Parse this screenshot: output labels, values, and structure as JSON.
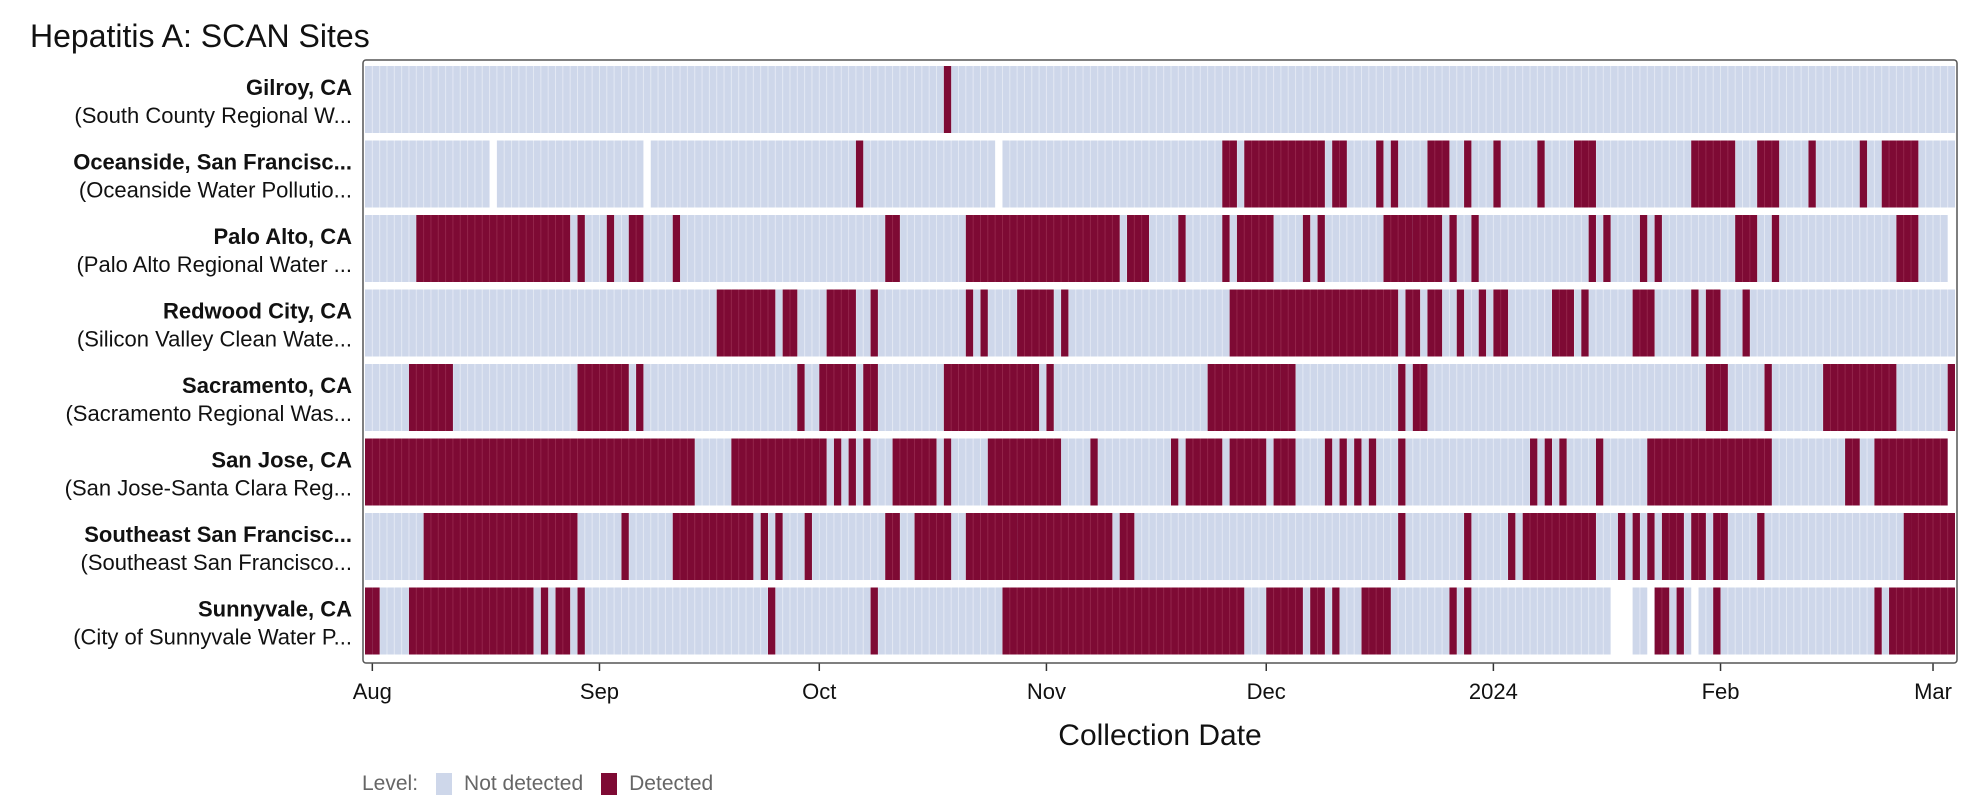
{
  "chart_data": {
    "type": "heatmap",
    "title": "Hepatitis A: SCAN Sites",
    "xlabel": "Collection Date",
    "ylabel": "",
    "x_range": [
      "2023-07-31",
      "2024-03-04"
    ],
    "x_ticks": [
      {
        "date": "2023-08-01",
        "label": "Aug"
      },
      {
        "date": "2023-09-01",
        "label": "Sep"
      },
      {
        "date": "2023-10-01",
        "label": "Oct"
      },
      {
        "date": "2023-11-01",
        "label": "Nov"
      },
      {
        "date": "2023-12-01",
        "label": "Dec"
      },
      {
        "date": "2024-01-01",
        "label": "2024"
      },
      {
        "date": "2024-02-01",
        "label": "Feb"
      },
      {
        "date": "2024-03-01",
        "label": "Mar"
      }
    ],
    "grid": false,
    "legend": {
      "title": "Level:",
      "placement": "bottom",
      "items": [
        {
          "label": "Not detected",
          "color": "#ced7ea"
        },
        {
          "label": "Detected",
          "color": "#7e0a34"
        }
      ]
    },
    "colors": {
      "not_detected": "#ced7ea",
      "detected": "#7e0a34",
      "day_line": "#e3e8f3"
    },
    "sites": [
      {
        "name": "Gilroy, CA",
        "subtitle": "(South County Regional W...",
        "coverage": [
          [
            "2023-07-31",
            "2024-03-04"
          ]
        ],
        "detected": [
          [
            "2023-10-18",
            "2023-10-19"
          ]
        ]
      },
      {
        "name": "Oceanside, San Francisc...",
        "subtitle": "(Oceanside Water Pollutio...",
        "coverage": [
          [
            "2023-07-31",
            "2023-08-17"
          ],
          [
            "2023-08-18",
            "2023-09-07"
          ],
          [
            "2023-09-08",
            "2023-10-25"
          ],
          [
            "2023-10-26",
            "2024-03-04"
          ]
        ],
        "detected": [
          [
            "2023-10-06",
            "2023-10-07"
          ],
          [
            "2023-11-25",
            "2023-11-27"
          ],
          [
            "2023-11-28",
            "2023-12-09"
          ],
          [
            "2023-12-10",
            "2023-12-12"
          ],
          [
            "2023-12-16",
            "2023-12-17"
          ],
          [
            "2023-12-18",
            "2023-12-19"
          ],
          [
            "2023-12-23",
            "2023-12-26"
          ],
          [
            "2023-12-28",
            "2023-12-29"
          ],
          [
            "2024-01-01",
            "2024-01-02"
          ],
          [
            "2024-01-07",
            "2024-01-08"
          ],
          [
            "2024-01-12",
            "2024-01-15"
          ],
          [
            "2024-01-28",
            "2024-02-03"
          ],
          [
            "2024-02-06",
            "2024-02-09"
          ],
          [
            "2024-02-13",
            "2024-02-14"
          ],
          [
            "2024-02-20",
            "2024-02-21"
          ],
          [
            "2024-02-23",
            "2024-02-28"
          ]
        ]
      },
      {
        "name": "Palo Alto, CA",
        "subtitle": "(Palo Alto Regional Water ...",
        "coverage": [
          [
            "2023-07-31",
            "2024-03-03"
          ]
        ],
        "detected": [
          [
            "2023-08-07",
            "2023-08-28"
          ],
          [
            "2023-08-29",
            "2023-08-30"
          ],
          [
            "2023-09-02",
            "2023-09-03"
          ],
          [
            "2023-09-05",
            "2023-09-07"
          ],
          [
            "2023-09-11",
            "2023-09-12"
          ],
          [
            "2023-10-10",
            "2023-10-12"
          ],
          [
            "2023-10-21",
            "2023-11-11"
          ],
          [
            "2023-11-12",
            "2023-11-15"
          ],
          [
            "2023-11-19",
            "2023-11-20"
          ],
          [
            "2023-11-25",
            "2023-11-26"
          ],
          [
            "2023-11-27",
            "2023-12-02"
          ],
          [
            "2023-12-06",
            "2023-12-07"
          ],
          [
            "2023-12-08",
            "2023-12-09"
          ],
          [
            "2023-12-17",
            "2023-12-21"
          ],
          [
            "2023-12-21",
            "2023-12-25"
          ],
          [
            "2023-12-26",
            "2023-12-27"
          ],
          [
            "2023-12-29",
            "2023-12-30"
          ],
          [
            "2024-01-14",
            "2024-01-15"
          ],
          [
            "2024-01-16",
            "2024-01-17"
          ],
          [
            "2024-01-21",
            "2024-01-22"
          ],
          [
            "2024-01-23",
            "2024-01-24"
          ],
          [
            "2024-02-03",
            "2024-02-06"
          ],
          [
            "2024-02-08",
            "2024-02-09"
          ],
          [
            "2024-02-25",
            "2024-02-28"
          ]
        ]
      },
      {
        "name": "Redwood City, CA",
        "subtitle": "(Silicon Valley Clean Wate...",
        "coverage": [
          [
            "2023-07-31",
            "2024-03-04"
          ]
        ],
        "detected": [
          [
            "2023-09-17",
            "2023-09-25"
          ],
          [
            "2023-09-26",
            "2023-09-28"
          ],
          [
            "2023-10-02",
            "2023-10-06"
          ],
          [
            "2023-10-08",
            "2023-10-09"
          ],
          [
            "2023-10-21",
            "2023-10-22"
          ],
          [
            "2023-10-23",
            "2023-10-24"
          ],
          [
            "2023-10-28",
            "2023-11-02"
          ],
          [
            "2023-11-03",
            "2023-11-04"
          ],
          [
            "2023-11-26",
            "2023-12-19"
          ],
          [
            "2023-12-20",
            "2023-12-22"
          ],
          [
            "2023-12-23",
            "2023-12-25"
          ],
          [
            "2023-12-27",
            "2023-12-28"
          ],
          [
            "2023-12-30",
            "2023-12-31"
          ],
          [
            "2024-01-01",
            "2024-01-03"
          ],
          [
            "2024-01-09",
            "2024-01-12"
          ],
          [
            "2024-01-13",
            "2024-01-14"
          ],
          [
            "2024-01-20",
            "2024-01-23"
          ],
          [
            "2024-01-28",
            "2024-01-29"
          ],
          [
            "2024-01-30",
            "2024-02-01"
          ],
          [
            "2024-02-04",
            "2024-02-05"
          ]
        ]
      },
      {
        "name": "Sacramento, CA",
        "subtitle": "(Sacramento Regional Was...",
        "coverage": [
          [
            "2023-07-31",
            "2024-03-04"
          ]
        ],
        "detected": [
          [
            "2023-08-06",
            "2023-08-12"
          ],
          [
            "2023-08-29",
            "2023-09-05"
          ],
          [
            "2023-09-06",
            "2023-09-07"
          ],
          [
            "2023-09-28",
            "2023-09-29"
          ],
          [
            "2023-10-01",
            "2023-10-06"
          ],
          [
            "2023-10-07",
            "2023-10-09"
          ],
          [
            "2023-10-18",
            "2023-10-31"
          ],
          [
            "2023-11-01",
            "2023-11-02"
          ],
          [
            "2023-11-23",
            "2023-12-03"
          ],
          [
            "2023-12-03",
            "2023-12-05"
          ],
          [
            "2023-12-19",
            "2023-12-20"
          ],
          [
            "2023-12-21",
            "2023-12-23"
          ],
          [
            "2024-01-30",
            "2024-02-02"
          ],
          [
            "2024-02-07",
            "2024-02-08"
          ],
          [
            "2024-02-15",
            "2024-02-25"
          ],
          [
            "2024-03-03",
            "2024-03-04"
          ]
        ]
      },
      {
        "name": "San Jose, CA",
        "subtitle": "(San Jose-Santa Clara Reg...",
        "coverage": [
          [
            "2023-07-31",
            "2024-03-03"
          ]
        ],
        "detected": [
          [
            "2023-07-31",
            "2023-09-14"
          ],
          [
            "2023-09-19",
            "2023-10-01"
          ],
          [
            "2023-10-01",
            "2023-10-02"
          ],
          [
            "2023-10-03",
            "2023-10-04"
          ],
          [
            "2023-10-05",
            "2023-10-06"
          ],
          [
            "2023-10-07",
            "2023-10-08"
          ],
          [
            "2023-10-11",
            "2023-10-17"
          ],
          [
            "2023-10-18",
            "2023-10-19"
          ],
          [
            "2023-10-24",
            "2023-11-03"
          ],
          [
            "2023-11-07",
            "2023-11-08"
          ],
          [
            "2023-11-18",
            "2023-11-19"
          ],
          [
            "2023-11-20",
            "2023-11-25"
          ],
          [
            "2023-11-26",
            "2023-12-01"
          ],
          [
            "2023-12-02",
            "2023-12-05"
          ],
          [
            "2023-12-09",
            "2023-12-10"
          ],
          [
            "2023-12-11",
            "2023-12-12"
          ],
          [
            "2023-12-13",
            "2023-12-14"
          ],
          [
            "2023-12-15",
            "2023-12-16"
          ],
          [
            "2023-12-19",
            "2023-12-20"
          ],
          [
            "2024-01-06",
            "2024-01-07"
          ],
          [
            "2024-01-08",
            "2024-01-09"
          ],
          [
            "2024-01-10",
            "2024-01-11"
          ],
          [
            "2024-01-15",
            "2024-01-16"
          ],
          [
            "2024-01-22",
            "2024-02-08"
          ],
          [
            "2024-02-18",
            "2024-02-20"
          ],
          [
            "2024-02-22",
            "2024-03-03"
          ]
        ]
      },
      {
        "name": "Southeast San Francisc...",
        "subtitle": "(Southeast San Francisco...",
        "coverage": [
          [
            "2023-07-31",
            "2023-10-27"
          ],
          [
            "2023-10-28",
            "2024-03-04"
          ]
        ],
        "detected": [
          [
            "2023-08-08",
            "2023-08-29"
          ],
          [
            "2023-09-04",
            "2023-09-05"
          ],
          [
            "2023-09-11",
            "2023-09-22"
          ],
          [
            "2023-09-23",
            "2023-09-24"
          ],
          [
            "2023-09-25",
            "2023-09-26"
          ],
          [
            "2023-09-29",
            "2023-09-30"
          ],
          [
            "2023-10-10",
            "2023-10-12"
          ],
          [
            "2023-10-14",
            "2023-10-19"
          ],
          [
            "2023-10-21",
            "2023-10-28"
          ],
          [
            "2023-10-28",
            "2023-11-10"
          ],
          [
            "2023-11-11",
            "2023-11-13"
          ],
          [
            "2023-12-19",
            "2023-12-20"
          ],
          [
            "2023-12-28",
            "2023-12-29"
          ],
          [
            "2024-01-03",
            "2024-01-04"
          ],
          [
            "2024-01-05",
            "2024-01-15"
          ],
          [
            "2024-01-18",
            "2024-01-19"
          ],
          [
            "2024-01-20",
            "2024-01-21"
          ],
          [
            "2024-01-22",
            "2024-01-23"
          ],
          [
            "2024-01-24",
            "2024-01-27"
          ],
          [
            "2024-01-28",
            "2024-01-30"
          ],
          [
            "2024-01-31",
            "2024-02-02"
          ],
          [
            "2024-02-06",
            "2024-02-07"
          ],
          [
            "2024-02-26",
            "2024-02-27"
          ],
          [
            "2024-02-27",
            "2024-03-04"
          ]
        ]
      },
      {
        "name": "Sunnyvale, CA",
        "subtitle": "(City of Sunnyvale Water P...",
        "coverage": [
          [
            "2023-07-31",
            "2024-01-17"
          ],
          [
            "2024-01-20",
            "2024-01-22"
          ],
          [
            "2024-01-23",
            "2024-01-28"
          ],
          [
            "2024-01-29",
            "2024-03-04"
          ]
        ],
        "detected": [
          [
            "2023-07-31",
            "2023-08-01"
          ],
          [
            "2023-08-01",
            "2023-08-02"
          ],
          [
            "2023-08-06",
            "2023-08-23"
          ],
          [
            "2023-08-24",
            "2023-08-25"
          ],
          [
            "2023-08-26",
            "2023-08-28"
          ],
          [
            "2023-08-29",
            "2023-08-30"
          ],
          [
            "2023-09-24",
            "2023-09-25"
          ],
          [
            "2023-10-08",
            "2023-10-09"
          ],
          [
            "2023-10-26",
            "2023-11-28"
          ],
          [
            "2023-12-01",
            "2023-12-06"
          ],
          [
            "2023-12-07",
            "2023-12-09"
          ],
          [
            "2023-12-10",
            "2023-12-11"
          ],
          [
            "2023-12-14",
            "2023-12-18"
          ],
          [
            "2023-12-26",
            "2023-12-27"
          ],
          [
            "2023-12-28",
            "2023-12-29"
          ],
          [
            "2024-01-23",
            "2024-01-25"
          ],
          [
            "2024-01-26",
            "2024-01-27"
          ],
          [
            "2024-01-31",
            "2024-02-01"
          ],
          [
            "2024-02-22",
            "2024-02-23"
          ],
          [
            "2024-02-24",
            "2024-03-04"
          ]
        ]
      }
    ]
  }
}
